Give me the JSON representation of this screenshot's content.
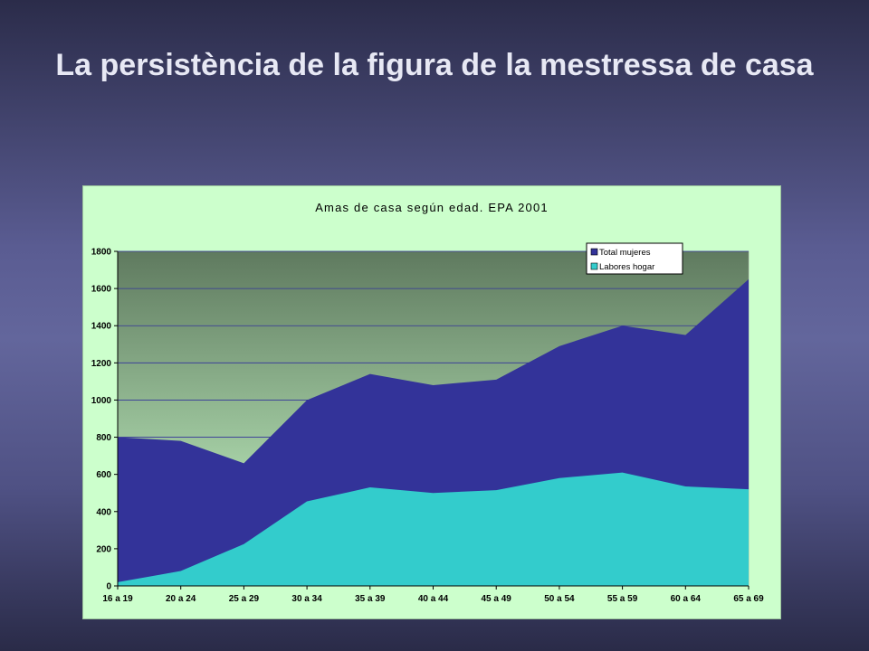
{
  "slide": {
    "title": "La persistència de la figura de la mestressa de casa"
  },
  "chart_data": {
    "type": "area",
    "title": "Amas de casa según edad. EPA 2001",
    "xlabel": "",
    "ylabel": "",
    "categories": [
      "16 a 19",
      "20 a 24",
      "25 a 29",
      "30 a 34",
      "35 a 39",
      "40 a 44",
      "45 a 49",
      "50 a 54",
      "55 a 59",
      "60 a 64",
      "65 a 69"
    ],
    "series": [
      {
        "name": "Total mujeres",
        "values": [
          800,
          780,
          660,
          1000,
          1140,
          1080,
          1110,
          1290,
          1400,
          1350,
          1650
        ],
        "color": "#333399"
      },
      {
        "name": "Labores  hogar",
        "values": [
          20,
          80,
          225,
          455,
          530,
          500,
          515,
          580,
          610,
          535,
          520
        ],
        "color": "#33cccc"
      }
    ],
    "ylim": [
      0,
      1800
    ],
    "yticks": [
      0,
      200,
      400,
      600,
      800,
      1000,
      1200,
      1400,
      1600,
      1800
    ],
    "grid": true,
    "legend_position": "top-right",
    "colors": {
      "plot_top": "#5f7a5f",
      "plot_bottom": "#ccffcc",
      "chart_background": "#ccffcc",
      "gridline": "#333399"
    }
  }
}
